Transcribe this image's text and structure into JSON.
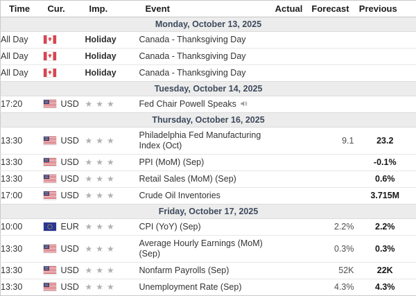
{
  "header": {
    "time": "Time",
    "cur": "Cur.",
    "imp": "Imp.",
    "event": "Event",
    "actual": "Actual",
    "forecast": "Forecast",
    "previous": "Previous"
  },
  "colors": {
    "date_row_bg": "#ececec",
    "date_row_text": "#3e4a5c",
    "star_gray": "#b1b1b1",
    "previous_text": "#161616",
    "forecast_text": "#4f4f4f",
    "canada_red": "#d8454f",
    "us_canton_blue": "#41416e",
    "us_stripe_red": "#d04a52",
    "eu_blue": "#2a3792",
    "eu_star_yellow": "#ffd429"
  },
  "rows": [
    {
      "type": "date",
      "label": "Monday, October 13, 2025"
    },
    {
      "type": "event",
      "time": "All Day",
      "flag": "canada-flag",
      "currency": "",
      "importance": "Holiday",
      "stars": 0,
      "event": "Canada - Thanksgiving Day",
      "has_audio": false,
      "actual": "",
      "forecast": "",
      "previous": ""
    },
    {
      "type": "event",
      "time": "All Day",
      "flag": "canada-flag",
      "currency": "",
      "importance": "Holiday",
      "stars": 0,
      "event": "Canada - Thanksgiving Day",
      "has_audio": false,
      "actual": "",
      "forecast": "",
      "previous": ""
    },
    {
      "type": "event",
      "time": "All Day",
      "flag": "canada-flag",
      "currency": "",
      "importance": "Holiday",
      "stars": 0,
      "event": "Canada - Thanksgiving Day",
      "has_audio": false,
      "actual": "",
      "forecast": "",
      "previous": ""
    },
    {
      "type": "date",
      "label": "Tuesday, October 14, 2025"
    },
    {
      "type": "event",
      "time": "17:20",
      "flag": "us-flag",
      "currency": "USD",
      "stars": 3,
      "event": "Fed Chair Powell Speaks",
      "has_audio": true,
      "actual": "",
      "forecast": "",
      "previous": ""
    },
    {
      "type": "date",
      "label": "Thursday, October 16, 2025"
    },
    {
      "type": "event",
      "time": "13:30",
      "flag": "us-flag",
      "currency": "USD",
      "stars": 3,
      "event": "Philadelphia Fed Manufacturing Index (Oct)",
      "has_audio": false,
      "actual": "",
      "forecast": "9.1",
      "previous": "23.2"
    },
    {
      "type": "event",
      "time": "13:30",
      "flag": "us-flag",
      "currency": "USD",
      "stars": 3,
      "event": "PPI (MoM) (Sep)",
      "has_audio": false,
      "actual": "",
      "forecast": "",
      "previous": "-0.1%"
    },
    {
      "type": "event",
      "time": "13:30",
      "flag": "us-flag",
      "currency": "USD",
      "stars": 3,
      "event": "Retail Sales (MoM) (Sep)",
      "has_audio": false,
      "actual": "",
      "forecast": "",
      "previous": "0.6%"
    },
    {
      "type": "event",
      "time": "17:00",
      "flag": "us-flag",
      "currency": "USD",
      "stars": 3,
      "event": "Crude Oil Inventories",
      "has_audio": false,
      "actual": "",
      "forecast": "",
      "previous": "3.715M"
    },
    {
      "type": "date",
      "label": "Friday, October 17, 2025"
    },
    {
      "type": "event",
      "time": "10:00",
      "flag": "eu-flag",
      "currency": "EUR",
      "stars": 3,
      "event": "CPI (YoY) (Sep)",
      "has_audio": false,
      "actual": "",
      "forecast": "2.2%",
      "previous": "2.2%"
    },
    {
      "type": "event",
      "time": "13:30",
      "flag": "us-flag",
      "currency": "USD",
      "stars": 3,
      "event": "Average Hourly Earnings (MoM) (Sep)",
      "has_audio": false,
      "actual": "",
      "forecast": "0.3%",
      "previous": "0.3%"
    },
    {
      "type": "event",
      "time": "13:30",
      "flag": "us-flag",
      "currency": "USD",
      "stars": 3,
      "event": "Nonfarm Payrolls (Sep)",
      "has_audio": false,
      "actual": "",
      "forecast": "52K",
      "previous": "22K"
    },
    {
      "type": "event",
      "time": "13:30",
      "flag": "us-flag",
      "currency": "USD",
      "stars": 3,
      "event": "Unemployment Rate (Sep)",
      "has_audio": false,
      "actual": "",
      "forecast": "4.3%",
      "previous": "4.3%"
    }
  ]
}
